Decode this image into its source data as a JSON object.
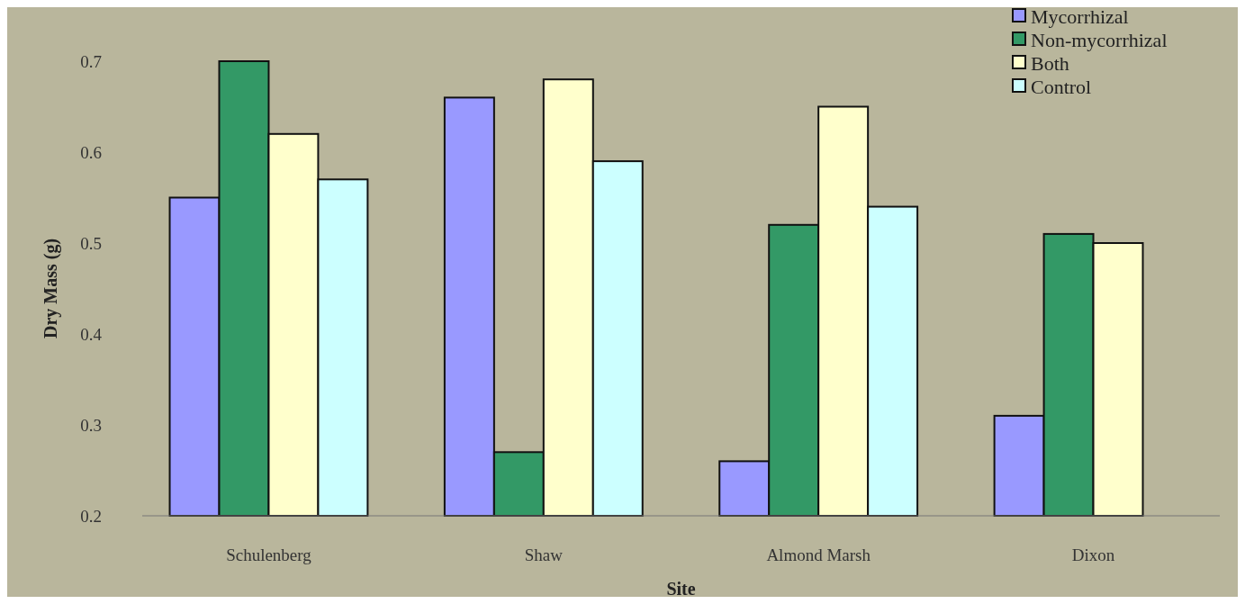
{
  "chart_data": {
    "type": "bar",
    "xlabel": "Site",
    "ylabel": "Dry Mass (g)",
    "categories": [
      "Schulenberg",
      "Shaw",
      "Almond Marsh",
      "Dixon"
    ],
    "series": [
      {
        "name": "Mycorrhizal",
        "color": "#9999ff",
        "values": [
          0.55,
          0.66,
          0.26,
          0.31
        ]
      },
      {
        "name": "Non-mycorrhizal",
        "color": "#339966",
        "values": [
          0.7,
          0.27,
          0.52,
          0.51
        ]
      },
      {
        "name": "Both",
        "color": "#ffffcc",
        "values": [
          0.62,
          0.68,
          0.65,
          0.5
        ]
      },
      {
        "name": "Control",
        "color": "#ccffff",
        "values": [
          0.57,
          0.59,
          0.54,
          null
        ]
      }
    ],
    "ylim": [
      0.2,
      0.7
    ],
    "yticks": [
      0.2,
      0.3,
      0.4,
      0.5,
      0.6,
      0.7
    ],
    "grid": false,
    "legend": "top right"
  }
}
